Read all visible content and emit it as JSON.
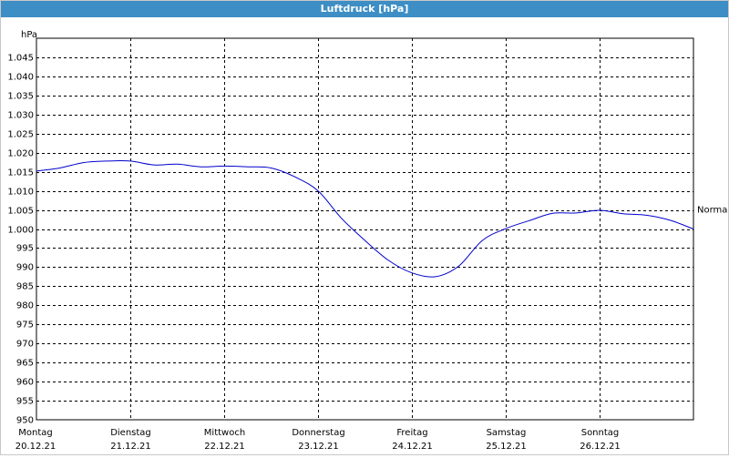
{
  "window": {
    "title": "Luftdruck [hPa]"
  },
  "chart_data": {
    "type": "line",
    "title": "Luftdruck [hPa]",
    "ylabel": "hPa",
    "ylim": [
      950,
      1050
    ],
    "grid": true,
    "colors": {
      "line": "#0000cc",
      "grid": "#000000",
      "background": "#ffffff",
      "titlebar": "#3d8ec4"
    },
    "y_ticks": [
      "950",
      "955",
      "960",
      "965",
      "970",
      "975",
      "980",
      "985",
      "990",
      "995",
      "1.000",
      "1.005",
      "1.010",
      "1.015",
      "1.020",
      "1.025",
      "1.030",
      "1.035",
      "1.040",
      "1.045"
    ],
    "x_ticks": [
      {
        "day": "Montag",
        "date": "20.12.21"
      },
      {
        "day": "Dienstag",
        "date": "21.12.21"
      },
      {
        "day": "Mittwoch",
        "date": "22.12.21"
      },
      {
        "day": "Donnerstag",
        "date": "23.12.21"
      },
      {
        "day": "Freitag",
        "date": "24.12.21"
      },
      {
        "day": "Samstag",
        "date": "25.12.21"
      },
      {
        "day": "Sonntag",
        "date": "26.12.21"
      }
    ],
    "reference_line": {
      "label": "Normal",
      "value": 1005
    },
    "series": [
      {
        "x": [
          "20.12.21 00:00",
          "20.12.21 06:00",
          "20.12.21 12:00",
          "20.12.21 18:00",
          "21.12.21 00:00",
          "21.12.21 06:00",
          "21.12.21 12:00",
          "21.12.21 18:00",
          "22.12.21 00:00",
          "22.12.21 06:00",
          "22.12.21 12:00",
          "22.12.21 18:00",
          "23.12.21 00:00",
          "23.12.21 06:00",
          "23.12.21 12:00",
          "23.12.21 18:00",
          "24.12.21 00:00",
          "24.12.21 06:00",
          "24.12.21 12:00",
          "24.12.21 18:00",
          "25.12.21 00:00",
          "25.12.21 06:00",
          "25.12.21 12:00",
          "25.12.21 18:00",
          "26.12.21 00:00",
          "26.12.21 06:00",
          "26.12.21 12:00",
          "26.12.21 18:00",
          "27.12.21 00:00"
        ],
        "values": [
          1015.2,
          1016.0,
          1017.4,
          1017.8,
          1017.8,
          1016.8,
          1017.0,
          1016.3,
          1016.5,
          1016.3,
          1016.0,
          1013.7,
          1010.0,
          1002.8,
          997.0,
          991.8,
          988.5,
          987.5,
          990.3,
          997.0,
          1000.1,
          1002.2,
          1004.1,
          1004.2,
          1004.9,
          1004.0,
          1003.6,
          1002.3,
          1000.0
        ]
      }
    ]
  }
}
